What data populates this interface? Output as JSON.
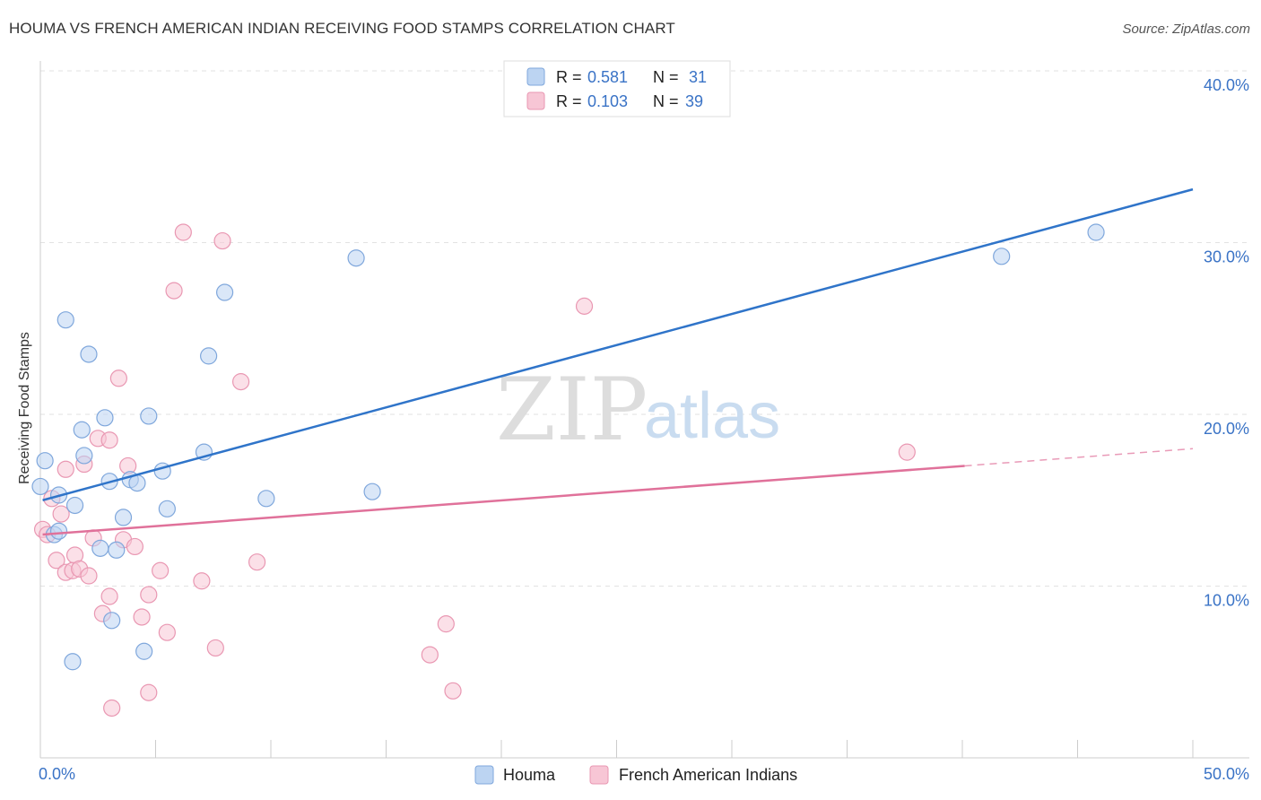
{
  "title": "HOUMA VS FRENCH AMERICAN INDIAN RECEIVING FOOD STAMPS CORRELATION CHART",
  "source": "Source: ZipAtlas.com",
  "watermark": {
    "part1": "ZIP",
    "part2": "atlas"
  },
  "legend_top": [
    {
      "r_label": "R =",
      "r_value": "0.581",
      "n_label": "N =",
      "n_value": "31"
    },
    {
      "r_label": "R =",
      "r_value": "0.103",
      "n_label": "N =",
      "n_value": "39"
    }
  ],
  "legend_bottom": [
    "Houma",
    "French American Indians"
  ],
  "colors": {
    "houma_fill": "#bcd4f2",
    "houma_stroke": "#7fa7dc",
    "houma_line": "#2f74c9",
    "french_fill": "#f7c6d5",
    "french_stroke": "#e997b2",
    "french_line": "#e0719a",
    "grid": "#e2e2e2",
    "tick_text": "#3a73c6"
  },
  "chart_data": {
    "type": "scatter",
    "title": "HOUMA VS FRENCH AMERICAN INDIAN RECEIVING FOOD STAMPS CORRELATION CHART",
    "xlabel": "",
    "ylabel": "Receiving Food Stamps",
    "xlim": [
      0,
      50
    ],
    "ylim": [
      0,
      40
    ],
    "x_tick_labels": [
      "0.0%",
      "50.0%"
    ],
    "y_ticks": [
      10,
      20,
      30,
      40
    ],
    "y_tick_labels": [
      "10.0%",
      "20.0%",
      "30.0%",
      "40.0%"
    ],
    "grid": true,
    "legend_position": "top-center",
    "series": [
      {
        "name": "Houma",
        "r": 0.581,
        "n": 31,
        "trend": {
          "x0": 0.1,
          "y0": 15.0,
          "x1": 50,
          "y1": 33.1
        },
        "points": [
          [
            0.0,
            15.8
          ],
          [
            0.2,
            17.3
          ],
          [
            0.8,
            15.3
          ],
          [
            0.6,
            13.0
          ],
          [
            0.8,
            13.2
          ],
          [
            1.1,
            25.5
          ],
          [
            1.5,
            14.7
          ],
          [
            1.8,
            19.1
          ],
          [
            1.9,
            17.6
          ],
          [
            2.1,
            23.5
          ],
          [
            2.8,
            19.8
          ],
          [
            3.0,
            16.1
          ],
          [
            3.1,
            8.0
          ],
          [
            2.6,
            12.2
          ],
          [
            3.3,
            12.1
          ],
          [
            3.6,
            14.0
          ],
          [
            3.9,
            16.2
          ],
          [
            4.2,
            16.0
          ],
          [
            4.7,
            19.9
          ],
          [
            5.3,
            16.7
          ],
          [
            5.5,
            14.5
          ],
          [
            7.1,
            17.8
          ],
          [
            7.3,
            23.4
          ],
          [
            8.0,
            27.1
          ],
          [
            9.8,
            15.1
          ],
          [
            13.7,
            29.1
          ],
          [
            14.4,
            15.5
          ],
          [
            41.7,
            29.2
          ],
          [
            45.8,
            30.6
          ],
          [
            1.4,
            5.6
          ],
          [
            4.5,
            6.2
          ]
        ]
      },
      {
        "name": "French American Indians",
        "r": 0.103,
        "n": 39,
        "trend": {
          "x0": 0.1,
          "y0": 13.0,
          "x1": 40.1,
          "y1": 17.0
        },
        "trend_dashed": {
          "x0": 40.1,
          "y0": 17.0,
          "x1": 50,
          "y1": 18.0
        },
        "points": [
          [
            0.1,
            13.3
          ],
          [
            0.3,
            13.0
          ],
          [
            0.5,
            15.1
          ],
          [
            0.7,
            11.5
          ],
          [
            0.9,
            14.2
          ],
          [
            1.1,
            10.8
          ],
          [
            1.1,
            16.8
          ],
          [
            1.5,
            11.8
          ],
          [
            1.4,
            10.9
          ],
          [
            1.7,
            11.0
          ],
          [
            1.9,
            17.1
          ],
          [
            2.1,
            10.6
          ],
          [
            2.3,
            12.8
          ],
          [
            2.5,
            18.6
          ],
          [
            2.7,
            8.4
          ],
          [
            3.0,
            9.4
          ],
          [
            3.0,
            18.5
          ],
          [
            3.4,
            22.1
          ],
          [
            3.6,
            12.7
          ],
          [
            3.8,
            17.0
          ],
          [
            4.1,
            12.3
          ],
          [
            4.4,
            8.2
          ],
          [
            4.7,
            9.5
          ],
          [
            4.7,
            3.8
          ],
          [
            5.2,
            10.9
          ],
          [
            5.5,
            7.3
          ],
          [
            5.8,
            27.2
          ],
          [
            6.2,
            30.6
          ],
          [
            7.0,
            10.3
          ],
          [
            7.6,
            6.4
          ],
          [
            7.9,
            30.1
          ],
          [
            8.7,
            21.9
          ],
          [
            9.4,
            11.4
          ],
          [
            16.9,
            6.0
          ],
          [
            17.6,
            7.8
          ],
          [
            17.9,
            3.9
          ],
          [
            23.6,
            26.3
          ],
          [
            37.6,
            17.8
          ],
          [
            3.1,
            2.9
          ]
        ]
      }
    ]
  }
}
